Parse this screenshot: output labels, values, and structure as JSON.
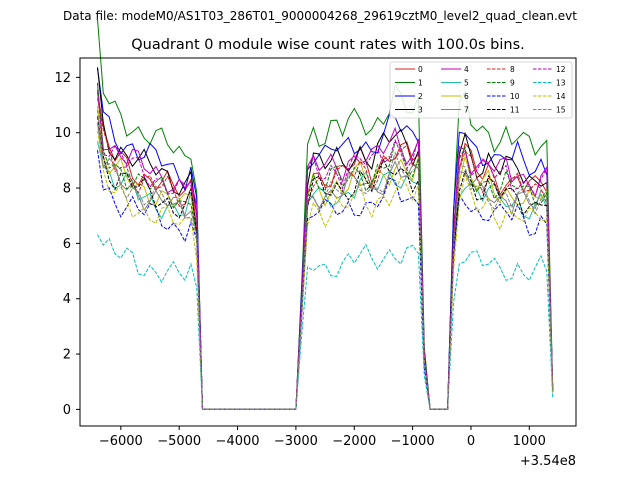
{
  "chart_data": {
    "type": "line",
    "suptitle": "Data file: modeM0/AS1T03_286T01_9000004268_29619cztM0_level2_quad_clean.evt",
    "title": "Quadrant 0 module wise count rates with 100.0s bins.",
    "xlabel": "",
    "ylabel": "",
    "offset_label": "+3.54e8",
    "xlim": [
      -6700,
      1800
    ],
    "ylim": [
      -0.6,
      12.7
    ],
    "xticks": [
      -6000,
      -5000,
      -4000,
      -3000,
      -2000,
      -1000,
      0,
      1000
    ],
    "xtick_labels": [
      "−6000",
      "−5000",
      "−4000",
      "−3000",
      "−2000",
      "−1000",
      "0",
      "1000"
    ],
    "yticks": [
      0,
      2,
      4,
      6,
      8,
      10,
      12
    ],
    "ytick_labels": [
      "0",
      "2",
      "4",
      "6",
      "8",
      "10",
      "12"
    ],
    "x_start": -6400,
    "x_step": 100,
    "levels": [
      8.8,
      10.4,
      9.6,
      9.2,
      9.1,
      8.0,
      8.3,
      8.1,
      8.6,
      8.5,
      7.4,
      8.2,
      8.9,
      5.4,
      7.5,
      8.1
    ],
    "outline": [
      1.3,
      1.1,
      1.06,
      1.03,
      1.02,
      1.0,
      0.99,
      0.97,
      0.96,
      0.95,
      0.94,
      0.93,
      0.92,
      0.9,
      0.89,
      0.88,
      0.92,
      0.78,
      0,
      0,
      0,
      0,
      0,
      0,
      0,
      0,
      0,
      0,
      0,
      0,
      0,
      0,
      0,
      0,
      0,
      0.45,
      0.92,
      0.98,
      0.96,
      0.95,
      0.97,
      0.98,
      0.96,
      0.99,
      1.0,
      1.02,
      1.0,
      0.98,
      1.01,
      1.03,
      1.05,
      1.08,
      1.06,
      1.04,
      1.02,
      1.05,
      0.22,
      0,
      0,
      0,
      0,
      0.7,
      1.02,
      1.06,
      1.0,
      0.97,
      0.96,
      0.98,
      0.95,
      0.94,
      0.96,
      0.93,
      0.95,
      0.92,
      0.91,
      0.9,
      0.93,
      0.92,
      0.08
    ],
    "series": [
      {
        "name": "0",
        "color": "#d62020",
        "dash": "solid"
      },
      {
        "name": "1",
        "color": "#008000",
        "dash": "solid"
      },
      {
        "name": "2",
        "color": "#0000ff",
        "dash": "solid"
      },
      {
        "name": "3",
        "color": "#000000",
        "dash": "solid"
      },
      {
        "name": "4",
        "color": "#bf00bf",
        "dash": "solid"
      },
      {
        "name": "5",
        "color": "#1fbfa0",
        "dash": "solid"
      },
      {
        "name": "6",
        "color": "#bfbf00",
        "dash": "solid"
      },
      {
        "name": "7",
        "color": "#808080",
        "dash": "solid"
      },
      {
        "name": "8",
        "color": "#d62020",
        "dash": "dashed"
      },
      {
        "name": "9",
        "color": "#008000",
        "dash": "dashed"
      },
      {
        "name": "10",
        "color": "#0000ff",
        "dash": "dashed"
      },
      {
        "name": "11",
        "color": "#000000",
        "dash": "dashed"
      },
      {
        "name": "12",
        "color": "#bf00bf",
        "dash": "dashed"
      },
      {
        "name": "13",
        "color": "#00bfbf",
        "dash": "dashed"
      },
      {
        "name": "14",
        "color": "#bfbf00",
        "dash": "dashed"
      },
      {
        "name": "15",
        "color": "#808080",
        "dash": "dashed"
      }
    ]
  }
}
